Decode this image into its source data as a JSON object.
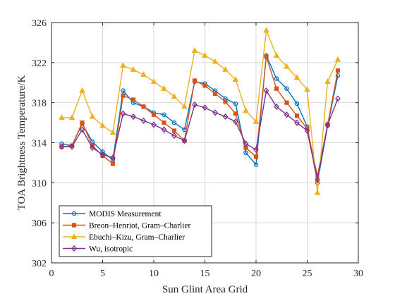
{
  "chart_data": {
    "type": "line",
    "xlabel": "Sun Glint Area Grid",
    "ylabel": "TOA Brightness Temperature/K",
    "xlim": [
      0,
      30
    ],
    "ylim": [
      302,
      326
    ],
    "xticks": [
      "0",
      "5",
      "10",
      "15",
      "20",
      "25",
      "30"
    ],
    "yticks": [
      "302",
      "306",
      "310",
      "314",
      "318",
      "322",
      "326"
    ],
    "grid": true,
    "legend_position": "bottom-left",
    "x": [
      1,
      2,
      3,
      4,
      5,
      6,
      7,
      8,
      9,
      10,
      11,
      12,
      13,
      14,
      15,
      16,
      17,
      18,
      19,
      20,
      21,
      22,
      23,
      24,
      25,
      26,
      27,
      28
    ],
    "series": [
      {
        "name": "MODIS Measurement",
        "color": "#0072BD",
        "marker": "circle",
        "values": [
          313.9,
          313.7,
          315.9,
          314.1,
          313.1,
          312.3,
          319.2,
          318.0,
          317.6,
          317.0,
          316.8,
          316.0,
          315.3,
          320.1,
          319.9,
          319.2,
          318.4,
          317.9,
          313.0,
          311.8,
          322.7,
          320.4,
          319.4,
          317.9,
          315.6,
          310.0,
          315.7,
          320.7
        ]
      },
      {
        "name": "Breon–Henriot, Gram–Charlier",
        "color": "#D95319",
        "marker": "square",
        "values": [
          313.6,
          313.7,
          316.0,
          313.7,
          312.7,
          311.9,
          318.7,
          318.3,
          317.6,
          316.8,
          316.0,
          315.2,
          314.2,
          320.2,
          319.7,
          318.9,
          318.1,
          316.9,
          313.5,
          312.6,
          322.6,
          319.4,
          318.0,
          316.7,
          315.4,
          310.7,
          315.8,
          321.2
        ]
      },
      {
        "name": "Ebuchi–Kizu, Gram–Charlier",
        "color": "#EDB120",
        "marker": "triangle",
        "values": [
          316.5,
          316.5,
          319.2,
          316.6,
          315.7,
          315.0,
          321.7,
          321.3,
          320.8,
          320.1,
          319.4,
          318.6,
          317.6,
          323.2,
          322.7,
          322.1,
          321.3,
          320.3,
          317.2,
          316.1,
          325.2,
          322.7,
          321.6,
          320.5,
          319.3,
          309.0,
          320.1,
          322.3
        ]
      },
      {
        "name": "Wu, isotropic",
        "color": "#7E2F8E",
        "marker": "diamond",
        "values": [
          313.6,
          313.6,
          315.3,
          313.5,
          312.8,
          312.5,
          316.9,
          316.6,
          316.2,
          315.8,
          315.3,
          314.7,
          314.2,
          317.8,
          317.5,
          317.0,
          316.6,
          316.1,
          313.9,
          313.3,
          319.2,
          317.6,
          316.8,
          316.0,
          315.2,
          310.3,
          315.8,
          318.4
        ]
      }
    ]
  }
}
